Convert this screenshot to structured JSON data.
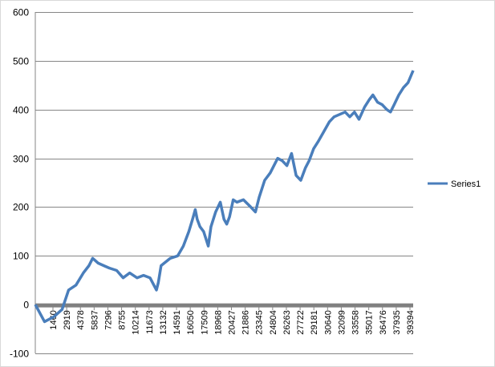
{
  "chart_data": {
    "type": "line",
    "title": "",
    "xlabel": "",
    "ylabel": "",
    "ylim": [
      -100,
      600
    ],
    "y_ticks": [
      -100,
      0,
      100,
      200,
      300,
      400,
      500,
      600
    ],
    "y_tick_labels": [
      "-100",
      "0",
      "100",
      "200",
      "300",
      "400",
      "500",
      "600"
    ],
    "x_tick_labels": [
      "1460",
      "2919",
      "4378",
      "5837",
      "7296",
      "8755",
      "10214",
      "11673",
      "13132",
      "14591",
      "16050",
      "17509",
      "18968",
      "20427",
      "21886",
      "23345",
      "24804",
      "26263",
      "27722",
      "29181",
      "30640",
      "32099",
      "33558",
      "35017",
      "36476",
      "37935",
      "39394"
    ],
    "xlim": [
      1,
      40853
    ],
    "grid": "horizontal",
    "legend_position": "right",
    "line_color": "#4a7ebb",
    "zero_axis_color": "#808080",
    "series": [
      {
        "name": "Series1",
        "x": [
          1,
          1000,
          2000,
          2900,
          3600,
          4400,
          5200,
          5800,
          6200,
          6800,
          7400,
          8000,
          8800,
          9500,
          10200,
          11000,
          11700,
          12400,
          13100,
          13300,
          13600,
          14600,
          15400,
          16000,
          16600,
          17000,
          17300,
          17500,
          17800,
          18200,
          18700,
          19000,
          19500,
          20000,
          20400,
          20700,
          21000,
          21400,
          21800,
          22500,
          23300,
          23800,
          24200,
          24800,
          25400,
          26200,
          26700,
          27200,
          27700,
          28200,
          28700,
          29200,
          29600,
          30100,
          30600,
          31200,
          31800,
          32300,
          32900,
          33500,
          34000,
          34500,
          35000,
          35600,
          36100,
          36500,
          37000,
          37500,
          38000,
          38400,
          38800,
          39300,
          39800,
          40300,
          40853
        ],
        "values": [
          0,
          -35,
          -25,
          -10,
          30,
          40,
          65,
          80,
          95,
          85,
          80,
          75,
          70,
          55,
          65,
          55,
          60,
          55,
          30,
          45,
          80,
          95,
          100,
          120,
          150,
          175,
          195,
          175,
          160,
          150,
          120,
          160,
          190,
          210,
          175,
          165,
          180,
          215,
          210,
          215,
          200,
          190,
          220,
          255,
          270,
          300,
          295,
          285,
          310,
          265,
          255,
          280,
          295,
          320,
          335,
          355,
          375,
          385,
          390,
          395,
          385,
          395,
          380,
          405,
          420,
          430,
          415,
          410,
          400,
          395,
          410,
          430,
          445,
          455,
          480
        ]
      }
    ]
  }
}
